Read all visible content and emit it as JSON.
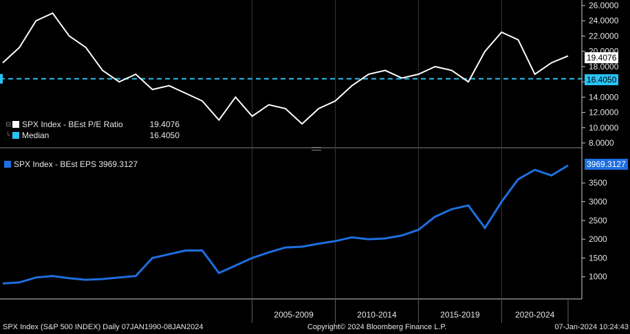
{
  "colors": {
    "background": "#000000",
    "pe_line": "#ffffff",
    "median": "#29c2f5",
    "eps_line": "#1e6fe0",
    "axis": "#d0d0d0",
    "grid_tick": "#606060"
  },
  "chart_data": [
    {
      "type": "line",
      "panel": "upper",
      "series": [
        {
          "name": "SPX Index - BEst P/E Ratio",
          "last_value": "19.4076",
          "x": [
            "1990",
            "1991",
            "1992",
            "1993",
            "1994",
            "1995",
            "1996",
            "1997",
            "1998",
            "1999",
            "2000",
            "2001",
            "2002",
            "2003",
            "2004",
            "2005",
            "2006",
            "2007",
            "2008",
            "2009",
            "2010",
            "2011",
            "2012",
            "2013",
            "2014",
            "2015",
            "2016",
            "2017",
            "2018",
            "2019",
            "2020",
            "2021",
            "2022",
            "2023",
            "2024"
          ],
          "values": [
            18.5,
            20.5,
            24.0,
            25.0,
            22.0,
            20.5,
            17.5,
            16.0,
            17.0,
            15.0,
            15.5,
            14.5,
            13.5,
            11.0,
            14.0,
            11.5,
            13.0,
            12.5,
            10.5,
            12.5,
            13.5,
            15.5,
            17.0,
            17.5,
            16.5,
            17.0,
            18.0,
            17.5,
            16.0,
            20.0,
            22.5,
            21.5,
            17.0,
            18.5,
            19.4
          ]
        },
        {
          "name": "Median",
          "last_value": "16.4050",
          "values": [
            16.405
          ]
        }
      ],
      "ylim": [
        8,
        26
      ],
      "yticks": [
        "26.0000",
        "24.0000",
        "22.0000",
        "20.0000",
        "18.0000",
        "16.0000",
        "14.0000",
        "12.0000",
        "10.0000",
        "8.0000"
      ]
    },
    {
      "type": "line",
      "panel": "lower",
      "series": [
        {
          "name": "SPX Index - BEst EPS",
          "last_value": "3969.3127",
          "x": [
            "1990",
            "1991",
            "1992",
            "1993",
            "1994",
            "1995",
            "1996",
            "1997",
            "1998",
            "1999",
            "2000",
            "2001",
            "2002",
            "2003",
            "2004",
            "2005",
            "2006",
            "2007",
            "2008",
            "2009",
            "2010",
            "2011",
            "2012",
            "2013",
            "2014",
            "2015",
            "2016",
            "2017",
            "2018",
            "2019",
            "2020",
            "2021",
            "2022",
            "2023",
            "2024"
          ],
          "values": [
            820,
            850,
            980,
            1020,
            960,
            920,
            940,
            980,
            1020,
            1500,
            1600,
            1700,
            1700,
            1100,
            1300,
            1500,
            1650,
            1780,
            1800,
            1880,
            1950,
            2050,
            2000,
            2020,
            2100,
            2250,
            2600,
            2800,
            2900,
            2300,
            3000,
            3600,
            3850,
            3700,
            3969
          ]
        }
      ],
      "ylim": [
        500,
        4200
      ],
      "yticks": [
        "3500",
        "3000",
        "2500",
        "2000",
        "1500",
        "1000"
      ]
    }
  ],
  "x_axis": {
    "labels": [
      "2005-2009",
      "2010-2014",
      "2015-2019",
      "2020-2024"
    ]
  },
  "legend_upper": {
    "pe_label": "SPX Index - BEst P/E Ratio",
    "pe_value": "19.4076",
    "median_label": "Median",
    "median_value": "16.4050"
  },
  "legend_lower": {
    "eps_label": "SPX Index - BEst EPS 3969.3127"
  },
  "value_boxes": {
    "pe": "19.4076",
    "median": "16.4050",
    "eps": "3969.3127"
  },
  "footer": {
    "left": "SPX Index (S&P 500 INDEX)  Daily 07JAN1990-08JAN2024",
    "center": "Copyright© 2024 Bloomberg Finance L.P.",
    "right": "07-Jan-2024 10:24:43"
  }
}
